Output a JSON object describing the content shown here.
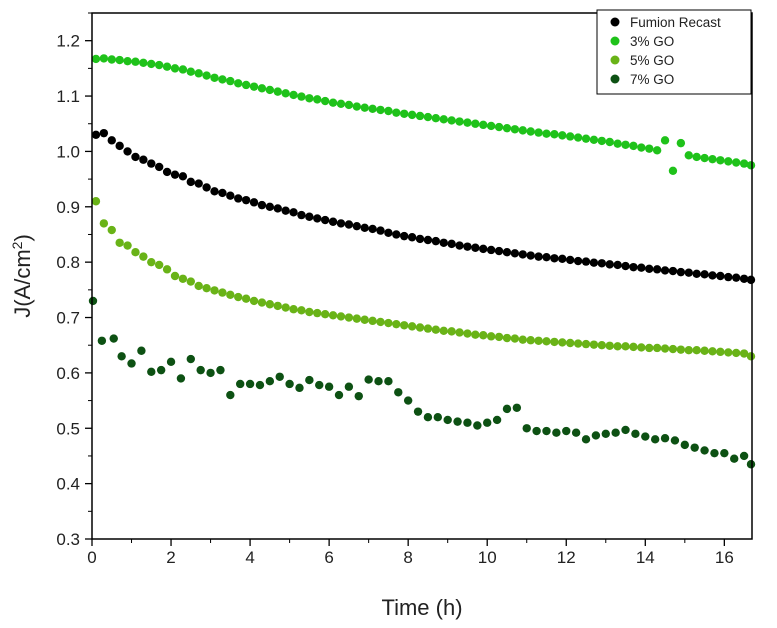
{
  "chart_data": {
    "type": "scatter",
    "xlabel": "Time (h)",
    "ylabel_main": "J(A/cm",
    "ylabel_sup": "2",
    "ylabel_close": ")",
    "xlim": [
      0,
      16.7
    ],
    "ylim": [
      0.3,
      1.25
    ],
    "xticks": [
      0,
      2,
      4,
      6,
      8,
      10,
      12,
      14,
      16
    ],
    "xtick_labels": [
      "0",
      "2",
      "4",
      "6",
      "8",
      "10",
      "12",
      "14",
      "16"
    ],
    "yticks": [
      0.3,
      0.4,
      0.5,
      0.6,
      0.7,
      0.8,
      0.9,
      1.0,
      1.1,
      1.2
    ],
    "ytick_labels": [
      "0.3",
      "0.4",
      "0.5",
      "0.6",
      "0.7",
      "0.8",
      "0.9",
      "1.0",
      "1.1",
      "1.2"
    ],
    "grid": false,
    "legend_position": "top-right",
    "series": [
      {
        "name": "Fumion Recast",
        "color": "#000000",
        "x": [
          0.1,
          0.3,
          0.5,
          0.7,
          0.9,
          1.1,
          1.3,
          1.5,
          1.7,
          1.9,
          2.1,
          2.3,
          2.5,
          2.7,
          2.9,
          3.1,
          3.3,
          3.5,
          3.7,
          3.9,
          4.1,
          4.3,
          4.5,
          4.7,
          4.9,
          5.1,
          5.3,
          5.5,
          5.7,
          5.9,
          6.1,
          6.3,
          6.5,
          6.7,
          6.9,
          7.1,
          7.3,
          7.5,
          7.7,
          7.9,
          8.1,
          8.3,
          8.5,
          8.7,
          8.9,
          9.1,
          9.3,
          9.5,
          9.7,
          9.9,
          10.1,
          10.3,
          10.5,
          10.7,
          10.9,
          11.1,
          11.3,
          11.5,
          11.7,
          11.9,
          12.1,
          12.3,
          12.5,
          12.7,
          12.9,
          13.1,
          13.3,
          13.5,
          13.7,
          13.9,
          14.1,
          14.3,
          14.5,
          14.7,
          14.9,
          15.1,
          15.3,
          15.5,
          15.7,
          15.9,
          16.1,
          16.3,
          16.5,
          16.7
        ],
        "y": [
          1.03,
          1.033,
          1.02,
          1.01,
          1.0,
          0.99,
          0.985,
          0.978,
          0.972,
          0.963,
          0.958,
          0.955,
          0.945,
          0.942,
          0.935,
          0.928,
          0.925,
          0.92,
          0.915,
          0.912,
          0.908,
          0.903,
          0.9,
          0.897,
          0.893,
          0.89,
          0.885,
          0.882,
          0.879,
          0.876,
          0.873,
          0.87,
          0.868,
          0.865,
          0.862,
          0.86,
          0.857,
          0.853,
          0.85,
          0.847,
          0.845,
          0.842,
          0.84,
          0.838,
          0.835,
          0.833,
          0.83,
          0.828,
          0.826,
          0.824,
          0.822,
          0.82,
          0.818,
          0.816,
          0.814,
          0.812,
          0.81,
          0.809,
          0.807,
          0.806,
          0.804,
          0.802,
          0.801,
          0.799,
          0.798,
          0.796,
          0.795,
          0.793,
          0.791,
          0.79,
          0.788,
          0.787,
          0.785,
          0.784,
          0.782,
          0.781,
          0.779,
          0.778,
          0.776,
          0.775,
          0.773,
          0.772,
          0.77,
          0.768
        ]
      },
      {
        "name": "3% GO",
        "color": "#1fc21a",
        "x": [
          0.1,
          0.3,
          0.5,
          0.7,
          0.9,
          1.1,
          1.3,
          1.5,
          1.7,
          1.9,
          2.1,
          2.3,
          2.5,
          2.7,
          2.9,
          3.1,
          3.3,
          3.5,
          3.7,
          3.9,
          4.1,
          4.3,
          4.5,
          4.7,
          4.9,
          5.1,
          5.3,
          5.5,
          5.7,
          5.9,
          6.1,
          6.3,
          6.5,
          6.7,
          6.9,
          7.1,
          7.3,
          7.5,
          7.7,
          7.9,
          8.1,
          8.3,
          8.5,
          8.7,
          8.9,
          9.1,
          9.3,
          9.5,
          9.7,
          9.9,
          10.1,
          10.3,
          10.5,
          10.7,
          10.9,
          11.1,
          11.3,
          11.5,
          11.7,
          11.9,
          12.1,
          12.3,
          12.5,
          12.7,
          12.9,
          13.1,
          13.3,
          13.5,
          13.7,
          13.9,
          14.1,
          14.3,
          14.5,
          14.7,
          14.9,
          15.1,
          15.3,
          15.5,
          15.7,
          15.9,
          16.1,
          16.3,
          16.5,
          16.7
        ],
        "y": [
          1.167,
          1.168,
          1.166,
          1.165,
          1.163,
          1.162,
          1.16,
          1.158,
          1.156,
          1.153,
          1.15,
          1.148,
          1.144,
          1.141,
          1.137,
          1.133,
          1.13,
          1.127,
          1.123,
          1.12,
          1.117,
          1.114,
          1.111,
          1.108,
          1.105,
          1.102,
          1.099,
          1.096,
          1.094,
          1.091,
          1.088,
          1.086,
          1.084,
          1.081,
          1.079,
          1.077,
          1.075,
          1.073,
          1.07,
          1.068,
          1.066,
          1.064,
          1.062,
          1.06,
          1.058,
          1.056,
          1.054,
          1.052,
          1.05,
          1.048,
          1.046,
          1.044,
          1.042,
          1.04,
          1.038,
          1.036,
          1.034,
          1.032,
          1.031,
          1.029,
          1.027,
          1.025,
          1.023,
          1.021,
          1.019,
          1.017,
          1.014,
          1.012,
          1.01,
          1.007,
          1.005,
          1.002,
          1.02,
          0.965,
          1.015,
          0.993,
          0.99,
          0.988,
          0.986,
          0.984,
          0.982,
          0.98,
          0.978,
          0.975
        ]
      },
      {
        "name": "5% GO",
        "color": "#69b317",
        "x": [
          0.1,
          0.3,
          0.5,
          0.7,
          0.9,
          1.1,
          1.3,
          1.5,
          1.7,
          1.9,
          2.1,
          2.3,
          2.5,
          2.7,
          2.9,
          3.1,
          3.3,
          3.5,
          3.7,
          3.9,
          4.1,
          4.3,
          4.5,
          4.7,
          4.9,
          5.1,
          5.3,
          5.5,
          5.7,
          5.9,
          6.1,
          6.3,
          6.5,
          6.7,
          6.9,
          7.1,
          7.3,
          7.5,
          7.7,
          7.9,
          8.1,
          8.3,
          8.5,
          8.7,
          8.9,
          9.1,
          9.3,
          9.5,
          9.7,
          9.9,
          10.1,
          10.3,
          10.5,
          10.7,
          10.9,
          11.1,
          11.3,
          11.5,
          11.7,
          11.9,
          12.1,
          12.3,
          12.5,
          12.7,
          12.9,
          13.1,
          13.3,
          13.5,
          13.7,
          13.9,
          14.1,
          14.3,
          14.5,
          14.7,
          14.9,
          15.1,
          15.3,
          15.5,
          15.7,
          15.9,
          16.1,
          16.3,
          16.5,
          16.7
        ],
        "y": [
          0.91,
          0.87,
          0.858,
          0.835,
          0.83,
          0.818,
          0.81,
          0.8,
          0.795,
          0.787,
          0.775,
          0.77,
          0.765,
          0.757,
          0.753,
          0.749,
          0.745,
          0.741,
          0.737,
          0.734,
          0.73,
          0.727,
          0.724,
          0.721,
          0.718,
          0.715,
          0.713,
          0.71,
          0.708,
          0.706,
          0.704,
          0.702,
          0.7,
          0.698,
          0.696,
          0.694,
          0.692,
          0.69,
          0.688,
          0.686,
          0.684,
          0.682,
          0.68,
          0.678,
          0.676,
          0.675,
          0.673,
          0.671,
          0.669,
          0.668,
          0.666,
          0.665,
          0.663,
          0.662,
          0.66,
          0.659,
          0.658,
          0.657,
          0.656,
          0.655,
          0.654,
          0.653,
          0.652,
          0.651,
          0.65,
          0.649,
          0.648,
          0.648,
          0.647,
          0.646,
          0.645,
          0.645,
          0.644,
          0.643,
          0.642,
          0.641,
          0.641,
          0.64,
          0.639,
          0.638,
          0.637,
          0.636,
          0.635,
          0.63
        ]
      },
      {
        "name": "7% GO",
        "color": "#0d5113",
        "x": [
          0.0,
          0.25,
          0.55,
          0.75,
          1.0,
          1.25,
          1.5,
          1.75,
          2.0,
          2.25,
          2.5,
          2.75,
          3.0,
          3.25,
          3.5,
          3.75,
          4.0,
          4.25,
          4.5,
          4.75,
          5.0,
          5.25,
          5.5,
          5.75,
          6.0,
          6.25,
          6.5,
          6.75,
          7.0,
          7.25,
          7.5,
          7.75,
          8.0,
          8.25,
          8.5,
          8.75,
          9.0,
          9.25,
          9.5,
          9.75,
          10.0,
          10.25,
          10.5,
          10.75,
          11.0,
          11.25,
          11.5,
          11.75,
          12.0,
          12.25,
          12.5,
          12.75,
          13.0,
          13.25,
          13.5,
          13.75,
          14.0,
          14.25,
          14.5,
          14.75,
          15.0,
          15.25,
          15.5,
          15.75,
          16.0,
          16.25,
          16.5,
          16.7
        ],
        "y": [
          0.73,
          0.658,
          0.662,
          0.63,
          0.617,
          0.64,
          0.602,
          0.605,
          0.62,
          0.59,
          0.625,
          0.605,
          0.6,
          0.605,
          0.56,
          0.58,
          0.58,
          0.578,
          0.585,
          0.593,
          0.58,
          0.573,
          0.587,
          0.578,
          0.575,
          0.56,
          0.575,
          0.558,
          0.588,
          0.585,
          0.585,
          0.565,
          0.55,
          0.53,
          0.52,
          0.52,
          0.515,
          0.512,
          0.51,
          0.505,
          0.51,
          0.515,
          0.535,
          0.537,
          0.5,
          0.495,
          0.495,
          0.492,
          0.495,
          0.492,
          0.48,
          0.487,
          0.49,
          0.492,
          0.497,
          0.49,
          0.485,
          0.48,
          0.482,
          0.478,
          0.47,
          0.465,
          0.46,
          0.455,
          0.455,
          0.445,
          0.45,
          0.435
        ]
      }
    ]
  }
}
